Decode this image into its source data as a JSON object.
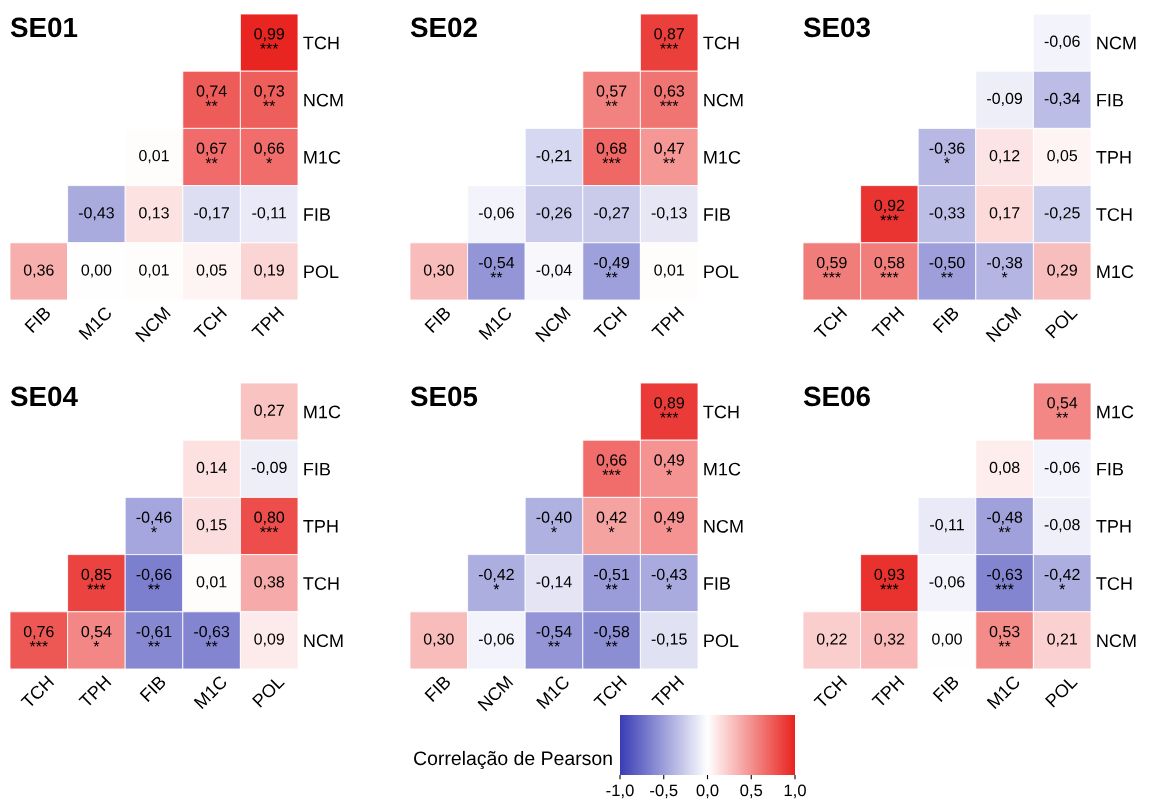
{
  "chart_data": [
    {
      "type": "heatmap",
      "title": "SE01",
      "categories": [
        "FIB",
        "M1C",
        "NCM",
        "TCH",
        "TPH"
      ],
      "y_categories": [
        "TCH",
        "NCM",
        "M1C",
        "FIB",
        "POL"
      ],
      "cells": [
        [
          null,
          null,
          null,
          null,
          0.99
        ],
        [
          null,
          null,
          null,
          0.74,
          0.73
        ],
        [
          null,
          null,
          0.01,
          0.67,
          0.66
        ],
        [
          null,
          -0.43,
          0.13,
          -0.17,
          -0.11
        ],
        [
          0.36,
          0.0,
          0.01,
          0.05,
          0.19
        ]
      ],
      "cell_labels": [
        [
          null,
          null,
          null,
          null,
          "0,99\n***"
        ],
        [
          null,
          null,
          null,
          "0,74\n**",
          "0,73\n**"
        ],
        [
          null,
          null,
          "0,01",
          "0,67\n**",
          "0,66\n*"
        ],
        [
          null,
          "-0,43",
          "0,13",
          "-0,17",
          "-0,11"
        ],
        [
          "0,36",
          "0,00",
          "0,01",
          "0,05",
          "0,19"
        ]
      ]
    },
    {
      "type": "heatmap",
      "title": "SE02",
      "categories": [
        "FIB",
        "M1C",
        "NCM",
        "TCH",
        "TPH"
      ],
      "y_categories": [
        "TCH",
        "NCM",
        "M1C",
        "FIB",
        "POL"
      ],
      "cells": [
        [
          null,
          null,
          null,
          null,
          0.87
        ],
        [
          null,
          null,
          null,
          0.57,
          0.63
        ],
        [
          null,
          null,
          -0.21,
          0.68,
          0.47
        ],
        [
          null,
          -0.06,
          -0.26,
          -0.27,
          -0.13
        ],
        [
          0.3,
          -0.54,
          -0.04,
          -0.49,
          0.01
        ]
      ],
      "cell_labels": [
        [
          null,
          null,
          null,
          null,
          "0,87\n***"
        ],
        [
          null,
          null,
          null,
          "0,57\n**",
          "0,63\n***"
        ],
        [
          null,
          null,
          "-0,21",
          "0,68\n***",
          "0,47\n**"
        ],
        [
          null,
          "-0,06",
          "-0,26",
          "-0,27",
          "-0,13"
        ],
        [
          "0,30",
          "-0,54\n**",
          "-0,04",
          "-0,49\n**",
          "0,01"
        ]
      ]
    },
    {
      "type": "heatmap",
      "title": "SE03",
      "categories": [
        "TCH",
        "TPH",
        "FIB",
        "NCM",
        "POL"
      ],
      "y_categories": [
        "NCM",
        "FIB",
        "TPH",
        "TCH",
        "M1C"
      ],
      "cells": [
        [
          null,
          null,
          null,
          null,
          -0.06
        ],
        [
          null,
          null,
          null,
          -0.09,
          -0.34
        ],
        [
          null,
          null,
          -0.36,
          0.12,
          0.05
        ],
        [
          null,
          0.92,
          -0.33,
          0.17,
          -0.25
        ],
        [
          0.59,
          0.58,
          -0.5,
          -0.38,
          0.29
        ]
      ],
      "cell_labels": [
        [
          null,
          null,
          null,
          null,
          "-0,06"
        ],
        [
          null,
          null,
          null,
          "-0,09",
          "-0,34"
        ],
        [
          null,
          null,
          "-0,36\n*",
          "0,12",
          "0,05"
        ],
        [
          null,
          "0,92\n***",
          "-0,33",
          "0,17",
          "-0,25"
        ],
        [
          "0,59\n***",
          "0,58\n***",
          "-0,50\n**",
          "-0,38\n*",
          "0,29"
        ]
      ]
    },
    {
      "type": "heatmap",
      "title": "SE04",
      "categories": [
        "TCH",
        "TPH",
        "FIB",
        "M1C",
        "POL"
      ],
      "y_categories": [
        "M1C",
        "FIB",
        "TPH",
        "TCH",
        "NCM"
      ],
      "cells": [
        [
          null,
          null,
          null,
          null,
          0.27
        ],
        [
          null,
          null,
          null,
          0.14,
          -0.09
        ],
        [
          null,
          null,
          -0.46,
          0.15,
          0.8
        ],
        [
          null,
          0.85,
          -0.66,
          0.01,
          0.38
        ],
        [
          0.76,
          0.54,
          -0.61,
          -0.63,
          0.09
        ]
      ],
      "cell_labels": [
        [
          null,
          null,
          null,
          null,
          "0,27"
        ],
        [
          null,
          null,
          null,
          "0,14",
          "-0,09"
        ],
        [
          null,
          null,
          "-0,46\n*",
          "0,15",
          "0,80\n***"
        ],
        [
          null,
          "0,85\n***",
          "-0,66\n**",
          "0,01",
          "0,38"
        ],
        [
          "0,76\n***",
          "0,54\n*",
          "-0,61\n**",
          "-0,63\n**",
          "0,09"
        ]
      ]
    },
    {
      "type": "heatmap",
      "title": "SE05",
      "categories": [
        "FIB",
        "NCM",
        "M1C",
        "TCH",
        "TPH"
      ],
      "y_categories": [
        "TCH",
        "M1C",
        "NCM",
        "FIB",
        "POL"
      ],
      "cells": [
        [
          null,
          null,
          null,
          null,
          0.89
        ],
        [
          null,
          null,
          null,
          0.66,
          0.49
        ],
        [
          null,
          null,
          -0.4,
          0.42,
          0.49
        ],
        [
          null,
          -0.42,
          -0.14,
          -0.51,
          -0.43
        ],
        [
          0.3,
          -0.06,
          -0.54,
          -0.58,
          -0.15
        ]
      ],
      "cell_labels": [
        [
          null,
          null,
          null,
          null,
          "0,89\n***"
        ],
        [
          null,
          null,
          null,
          "0,66\n***",
          "0,49\n*"
        ],
        [
          null,
          null,
          "-0,40\n*",
          "0,42\n*",
          "0,49\n*"
        ],
        [
          null,
          "-0,42\n*",
          "-0,14",
          "-0,51\n**",
          "-0,43\n*"
        ],
        [
          "0,30",
          "-0,06",
          "-0,54\n**",
          "-0,58\n**",
          "-0,15"
        ]
      ]
    },
    {
      "type": "heatmap",
      "title": "SE06",
      "categories": [
        "TCH",
        "TPH",
        "FIB",
        "M1C",
        "POL"
      ],
      "y_categories": [
        "M1C",
        "FIB",
        "TPH",
        "TCH",
        "NCM"
      ],
      "clim": [
        -1,
        1
      ],
      "clabel": "Correlação de Pearson",
      "cticks": [
        {
          "value": -1,
          "label": "-1,0"
        },
        {
          "value": -0.5,
          "label": "-0,5"
        },
        {
          "value": 0,
          "label": "0,0"
        },
        {
          "value": 0.5,
          "label": "0,5"
        },
        {
          "value": 1,
          "label": "1,0"
        }
      ],
      "cells": [
        [
          null,
          null,
          null,
          null,
          0.54
        ],
        [
          null,
          null,
          null,
          0.08,
          -0.06
        ],
        [
          null,
          null,
          -0.11,
          -0.48,
          -0.08
        ],
        [
          null,
          0.93,
          -0.06,
          -0.63,
          -0.42
        ],
        [
          0.22,
          0.32,
          0.0,
          0.53,
          0.21
        ]
      ],
      "cell_labels": [
        [
          null,
          null,
          null,
          null,
          "0,54\n**"
        ],
        [
          null,
          null,
          null,
          "0,08",
          "-0,06"
        ],
        [
          null,
          null,
          "-0,11",
          "-0,48\n**",
          "-0,08"
        ],
        [
          null,
          "0,93\n***",
          "-0,06",
          "-0,63\n***",
          "-0,42\n*"
        ],
        [
          "0,22",
          "0,32",
          "0,00",
          "0,53\n**",
          "0,21"
        ]
      ]
    }
  ]
}
